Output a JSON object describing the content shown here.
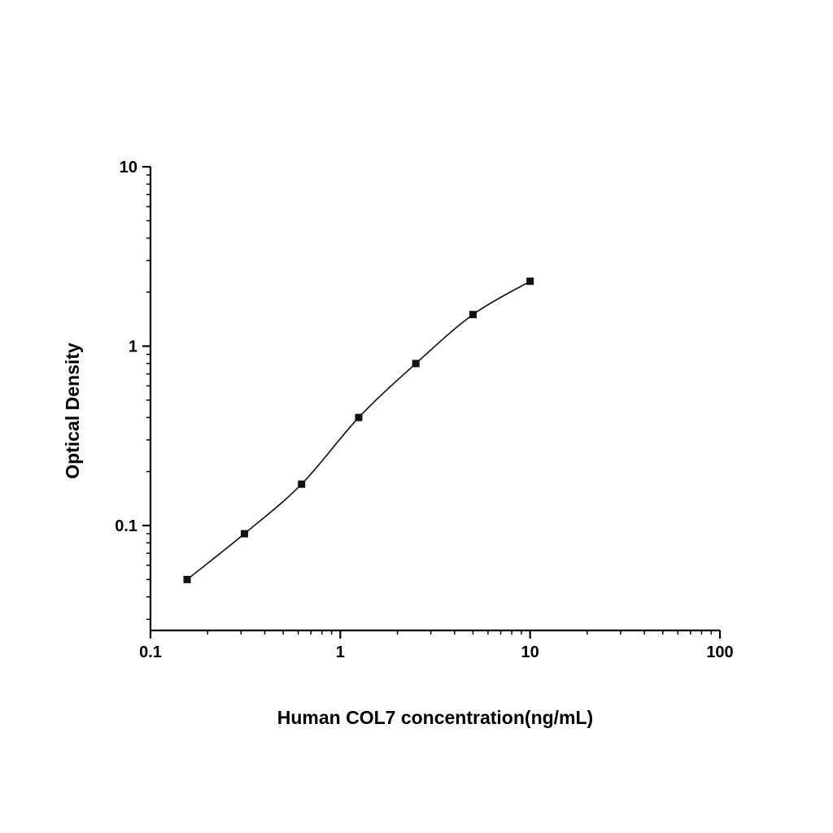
{
  "figure": {
    "background": "#ffffff"
  },
  "chart_data": {
    "type": "line",
    "title": "",
    "xlabel": "Human COL7 concentration(ng/mL)",
    "ylabel": "Optical Density",
    "xscale": "log",
    "yscale": "log",
    "xlim": [
      0.1,
      100
    ],
    "ylim": [
      0.026,
      10
    ],
    "x": [
      0.156,
      0.3125,
      0.625,
      1.25,
      2.5,
      5,
      10
    ],
    "y": [
      0.05,
      0.09,
      0.17,
      0.4,
      0.8,
      1.5,
      2.3
    ],
    "x_major_ticks": [
      {
        "value": 0.1,
        "label": "0.1"
      },
      {
        "value": 1,
        "label": "1"
      },
      {
        "value": 10,
        "label": "10"
      },
      {
        "value": 100,
        "label": "100"
      }
    ],
    "y_major_ticks": [
      {
        "value": 0.1,
        "label": "0.1"
      },
      {
        "value": 1,
        "label": "1"
      },
      {
        "value": 10,
        "label": "10"
      }
    ],
    "marker": "filled-square",
    "line_color": "#1b1b1b",
    "marker_color": "#111111",
    "axis_color": "#000000",
    "grid": false,
    "legend_position": "none"
  }
}
